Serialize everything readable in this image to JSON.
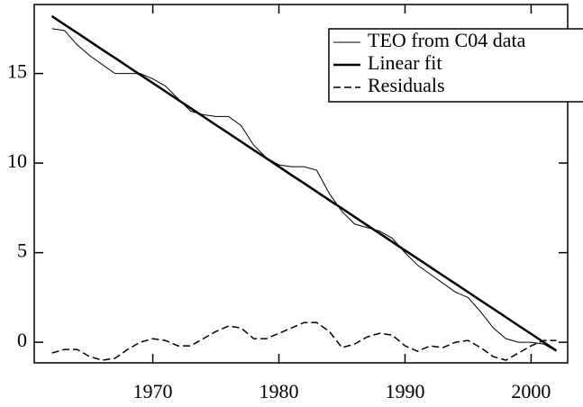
{
  "chart_data": {
    "type": "line",
    "x": [
      1962,
      1963,
      1964,
      1965,
      1966,
      1967,
      1968,
      1969,
      1970,
      1971,
      1972,
      1973,
      1974,
      1975,
      1976,
      1977,
      1978,
      1979,
      1980,
      1981,
      1982,
      1983,
      1984,
      1985,
      1986,
      1987,
      1988,
      1989,
      1990,
      1991,
      1992,
      1993,
      1994,
      1995,
      1996,
      1997,
      1998,
      1999,
      2000,
      2001,
      2002
    ],
    "series": [
      {
        "name": "TEO from C04 data",
        "color": "#000000",
        "width": 1,
        "dashed": false,
        "values": [
          17.5,
          17.4,
          16.6,
          16.0,
          15.5,
          15.0,
          15.0,
          15.0,
          14.7,
          14.3,
          13.6,
          12.9,
          12.7,
          12.6,
          12.6,
          12.1,
          11.0,
          10.3,
          9.9,
          9.8,
          9.8,
          9.6,
          8.3,
          7.3,
          6.6,
          6.4,
          6.2,
          5.8,
          5.0,
          4.3,
          3.8,
          3.3,
          2.8,
          2.5,
          1.7,
          0.8,
          0.2,
          0.0,
          0.0,
          -0.1,
          -0.5
        ]
      },
      {
        "name": "Linear fit",
        "color": "#000000",
        "width": 2.5,
        "dashed": false,
        "values": [
          18.2,
          17.73,
          17.27,
          16.8,
          16.33,
          15.87,
          15.4,
          14.93,
          14.47,
          14.0,
          13.53,
          13.07,
          12.6,
          12.13,
          11.67,
          11.2,
          10.73,
          10.27,
          9.8,
          9.33,
          8.87,
          8.4,
          7.93,
          7.47,
          7.0,
          6.53,
          6.07,
          5.6,
          5.13,
          4.67,
          4.2,
          3.73,
          3.27,
          2.8,
          2.33,
          1.87,
          1.4,
          0.93,
          0.47,
          0.0,
          -0.47
        ]
      },
      {
        "name": "Residuals",
        "color": "#000000",
        "width": 1.5,
        "dashed": true,
        "values": [
          -0.6,
          -0.4,
          -0.4,
          -0.8,
          -1.0,
          -0.9,
          -0.4,
          0.0,
          0.2,
          0.1,
          -0.2,
          -0.2,
          0.2,
          0.6,
          0.9,
          0.8,
          0.2,
          0.2,
          0.5,
          0.8,
          1.1,
          1.1,
          0.6,
          -0.3,
          -0.1,
          0.3,
          0.5,
          0.4,
          -0.2,
          -0.5,
          -0.2,
          -0.3,
          0.0,
          0.1,
          -0.3,
          -0.8,
          -1.0,
          -0.6,
          -0.2,
          0.1,
          0.1
        ]
      }
    ],
    "xlim": [
      1960.6,
      2002.9
    ],
    "xticks": [
      1970,
      1980,
      1990,
      2000
    ],
    "ylim": [
      -1.15,
      18.85
    ],
    "yticks": [
      0,
      5,
      10,
      15
    ],
    "legend": "upper right"
  }
}
